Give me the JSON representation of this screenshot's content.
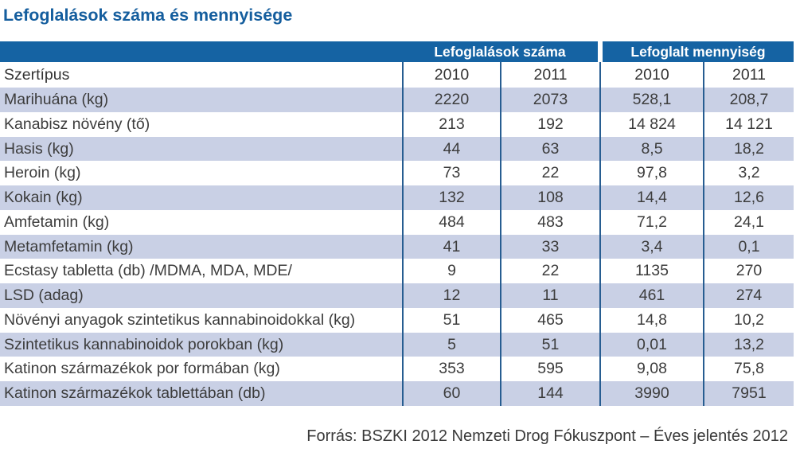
{
  "title": "Lefoglalások száma és mennyisége",
  "colors": {
    "title_blue": "#155e9e",
    "band_blue": "#1563a3",
    "stripe_blue": "#c9d0e5",
    "border_blue": "#275d91",
    "text_dark": "#3c3c3c"
  },
  "chart_data": {
    "type": "table",
    "title": "Lefoglalások száma és mennyisége",
    "group_headers": [
      "Lefoglalások száma",
      "Lefoglalt mennyiség"
    ],
    "column_headers": [
      "Szertípus",
      "2010",
      "2011",
      "2010",
      "2011"
    ],
    "rows": [
      {
        "label": "Marihuána (kg)",
        "values": [
          "2220",
          "2073",
          "528,1",
          "208,7"
        ]
      },
      {
        "label": "Kanabisz növény (tő)",
        "values": [
          "213",
          "192",
          "14 824",
          "14 121"
        ]
      },
      {
        "label": "Hasis (kg)",
        "values": [
          "44",
          "63",
          "8,5",
          "18,2"
        ]
      },
      {
        "label": "Heroin (kg)",
        "values": [
          "73",
          "22",
          "97,8",
          "3,2"
        ]
      },
      {
        "label": "Kokain (kg)",
        "values": [
          "132",
          "108",
          "14,4",
          "12,6"
        ]
      },
      {
        "label": "Amfetamin (kg)",
        "values": [
          "484",
          "483",
          "71,2",
          "24,1"
        ]
      },
      {
        "label": "Metamfetamin (kg)",
        "values": [
          "41",
          "33",
          "3,4",
          "0,1"
        ]
      },
      {
        "label": "Ecstasy tabletta (db) /MDMA, MDA, MDE/",
        "values": [
          "9",
          "22",
          "1135",
          "270"
        ]
      },
      {
        "label": "LSD (adag)",
        "values": [
          "12",
          "11",
          "461",
          "274"
        ]
      },
      {
        "label": "Növényi anyagok szintetikus kannabinoidokkal (kg)",
        "values": [
          "51",
          "465",
          "14,8",
          "10,2"
        ]
      },
      {
        "label": "Szintetikus kannabinoidok porokban (kg)",
        "values": [
          "5",
          "51",
          "0,01",
          "13,2"
        ]
      },
      {
        "label": "Katinon származékok por formában (kg)",
        "values": [
          "353",
          "595",
          "9,08",
          "75,8"
        ]
      },
      {
        "label": "Katinon származékok tablettában (db)",
        "values": [
          "60",
          "144",
          "3990",
          "7951"
        ]
      }
    ]
  },
  "footer": {
    "source_label": "Forrás: BSZKI 2012 Nemzeti Drog Fókuszpont – Éves jelentés 2012"
  }
}
